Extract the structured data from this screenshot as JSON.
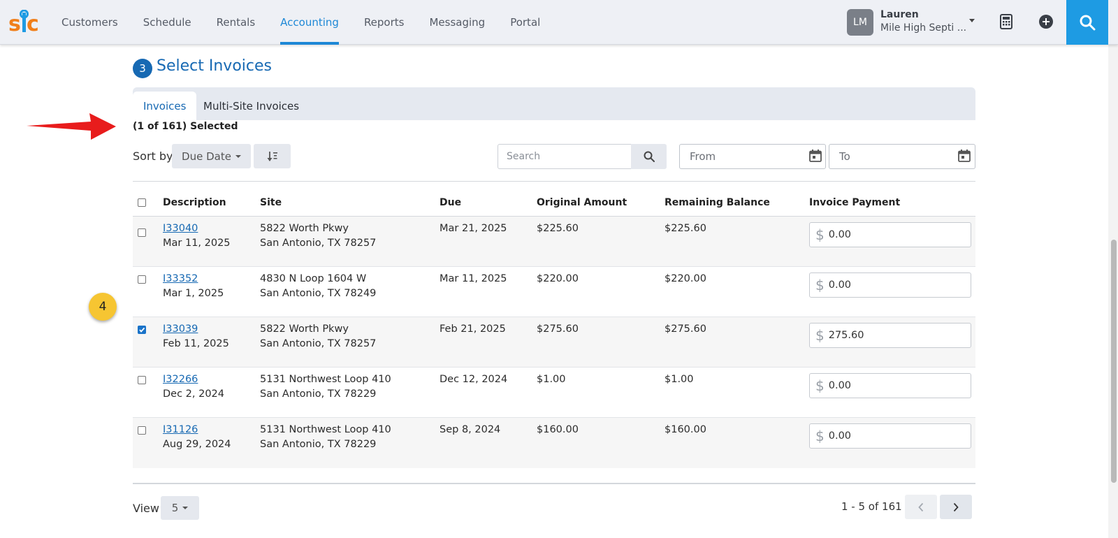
{
  "nav": {
    "items": [
      "Customers",
      "Schedule",
      "Rentals",
      "Accounting",
      "Reports",
      "Messaging",
      "Portal"
    ],
    "active_index": 3
  },
  "user": {
    "initials": "LM",
    "name": "Lauren",
    "company": "Mile High Septi ..."
  },
  "section": {
    "step": "3",
    "title": "Select Invoices"
  },
  "tabs": [
    {
      "label": "Invoices",
      "active": true
    },
    {
      "label": "Multi-Site Invoices",
      "active": false
    }
  ],
  "selected_count": "(1 of 161) Selected",
  "sort": {
    "label": "Sort by",
    "value": "Due Date"
  },
  "search": {
    "placeholder": "Search"
  },
  "dates": {
    "from_placeholder": "From",
    "to_placeholder": "To"
  },
  "table": {
    "headers": [
      "Description",
      "Site",
      "Due",
      "Original Amount",
      "Remaining Balance",
      "Invoice Payment"
    ],
    "rows": [
      {
        "invoice": "I33040",
        "date": "Mar 11, 2025",
        "address": "5822 Worth Pkwy",
        "city": "San Antonio, TX 78257",
        "due": "Mar 21, 2025",
        "original": "$225.60",
        "remaining": "$225.60",
        "payment": "0.00",
        "checked": false
      },
      {
        "invoice": "I33352",
        "date": "Mar 1, 2025",
        "address": "4830 N Loop 1604 W",
        "city": "San Antonio, TX 78249",
        "due": "Mar 11, 2025",
        "original": "$220.00",
        "remaining": "$220.00",
        "payment": "0.00",
        "checked": false
      },
      {
        "invoice": "I33039",
        "date": "Feb 11, 2025",
        "address": "5822 Worth Pkwy",
        "city": "San Antonio, TX 78257",
        "due": "Feb 21, 2025",
        "original": "$275.60",
        "remaining": "$275.60",
        "payment": "275.60",
        "checked": true
      },
      {
        "invoice": "I32266",
        "date": "Dec 2, 2024",
        "address": "5131 Northwest Loop 410",
        "city": "San Antonio, TX 78229",
        "due": "Dec 12, 2024",
        "original": "$1.00",
        "remaining": "$1.00",
        "payment": "0.00",
        "checked": false
      },
      {
        "invoice": "I31126",
        "date": "Aug 29, 2024",
        "address": "5131 Northwest Loop 410",
        "city": "San Antonio, TX 78229",
        "due": "Sep 8, 2024",
        "original": "$160.00",
        "remaining": "$160.00",
        "payment": "0.00",
        "checked": false
      }
    ]
  },
  "currency_symbol": "$",
  "step_marker": "4",
  "footer": {
    "view_label": "View",
    "page_size": "5",
    "page_info": "1 - 5 of 161"
  },
  "colors": {
    "accent": "#1769b3",
    "nav_active": "#1e88d6",
    "search_button": "#1e9be3",
    "arrow": "#e81c1c",
    "marker": "#f6c532"
  }
}
